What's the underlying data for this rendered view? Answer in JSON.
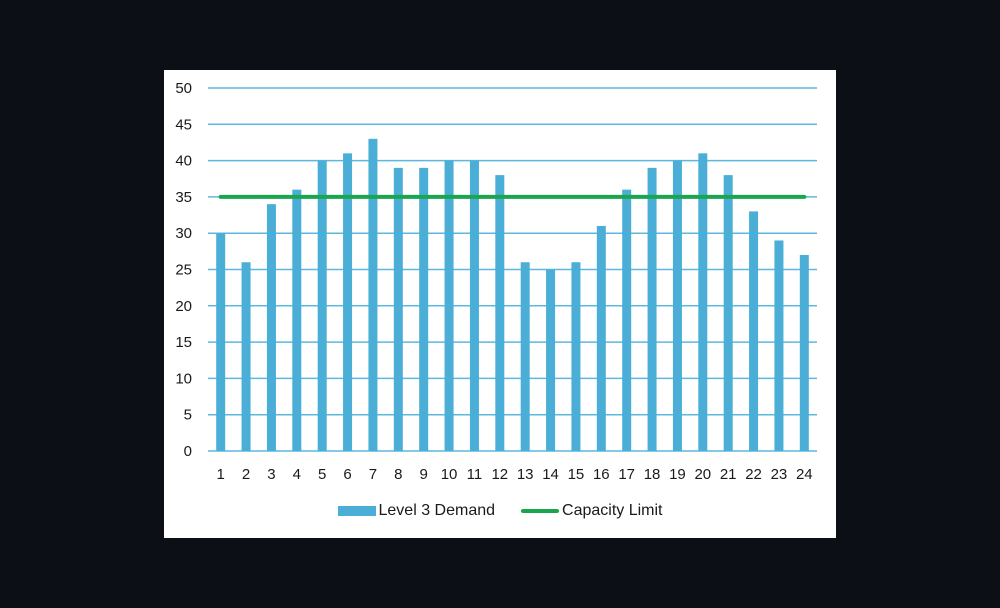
{
  "chart_data": {
    "type": "bar",
    "title": "",
    "xlabel": "",
    "ylabel": "",
    "ylim": [
      0,
      50
    ],
    "yticks": [
      0,
      5,
      10,
      15,
      20,
      25,
      30,
      35,
      40,
      45,
      50
    ],
    "grid": true,
    "legend_position": "bottom",
    "categories": [
      "1",
      "2",
      "3",
      "4",
      "5",
      "6",
      "7",
      "8",
      "9",
      "10",
      "11",
      "12",
      "13",
      "14",
      "15",
      "16",
      "17",
      "18",
      "19",
      "20",
      "21",
      "22",
      "23",
      "24"
    ],
    "series": [
      {
        "name": "Level 3 Demand",
        "type": "bar",
        "color": "#4aaed6",
        "values": [
          30,
          26,
          34,
          36,
          40,
          41,
          43,
          39,
          39,
          40,
          40,
          38,
          26,
          25,
          26,
          31,
          36,
          39,
          40,
          41,
          38,
          33,
          29,
          27
        ]
      },
      {
        "name": "Capacity Limit",
        "type": "line",
        "color": "#1aa64e",
        "values": [
          35,
          35,
          35,
          35,
          35,
          35,
          35,
          35,
          35,
          35,
          35,
          35,
          35,
          35,
          35,
          35,
          35,
          35,
          35,
          35,
          35,
          35,
          35,
          35
        ]
      }
    ]
  },
  "legend": {
    "demand_label": "Level 3 Demand",
    "capacity_label": "Capacity Limit"
  }
}
